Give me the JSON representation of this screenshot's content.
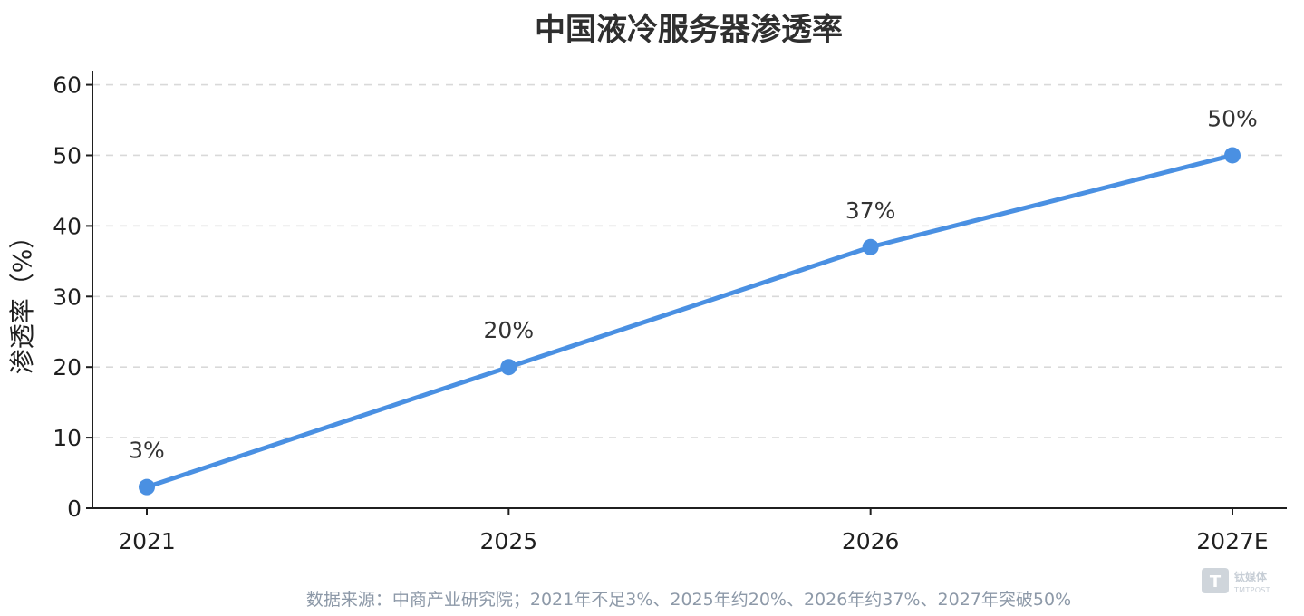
{
  "chart_data": {
    "type": "line",
    "title": "中国液冷服务器渗透率",
    "xlabel": "",
    "ylabel": "渗透率（%）",
    "categories": [
      "2021",
      "2025",
      "2026",
      "2027E"
    ],
    "series": [
      {
        "values": [
          3,
          20,
          37,
          50
        ],
        "labels": [
          "3%",
          "20%",
          "37%",
          "50%"
        ],
        "color": "#4a90e2"
      }
    ],
    "y_ticks": [
      "0",
      "10",
      "20",
      "30",
      "40",
      "50",
      "60"
    ],
    "ylim": [
      0,
      62
    ],
    "grid": true,
    "grid_style": "dashed horizontal"
  },
  "source_note": "数据来源：中商产业研究院；2021年不足3%、2025年约20%、2026年约37%、2027年突破50%",
  "watermark": {
    "logo_letter": "T",
    "text": "钛媒体",
    "subtext": "TMTPOST"
  },
  "colors": {
    "line": "#4a90e2",
    "axis": "#1f1f1f",
    "grid": "#d9d9d9"
  }
}
